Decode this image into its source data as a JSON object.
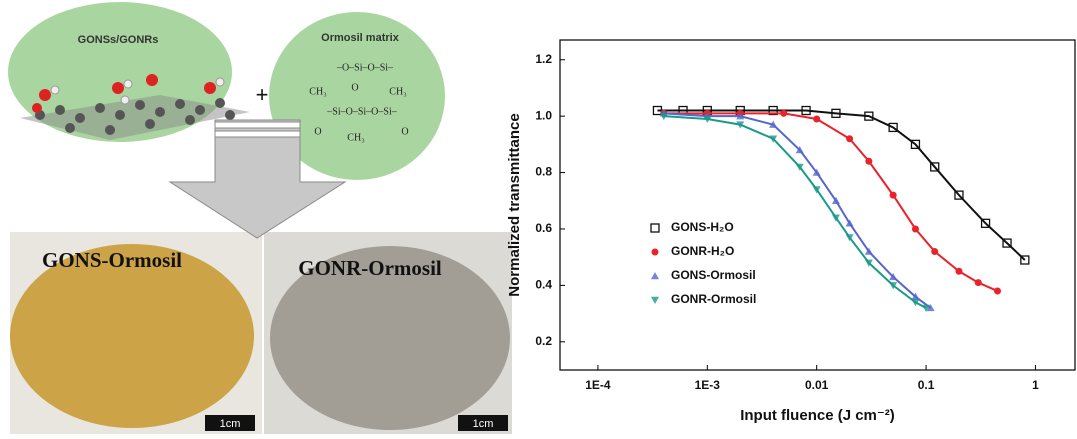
{
  "diagram": {
    "left_oval": "GONSs/GONRs",
    "right_oval": "Ormosil matrix",
    "plus": "+",
    "formula": [
      "–O–Si–O–Si–",
      "CH₃",
      "O",
      "CH₃",
      "–Si–O–Si–O–Si–",
      "O",
      "CH₃",
      "O"
    ],
    "photo_left": "GONS-Ormosil",
    "photo_right": "GONR-Ormosil",
    "scale": "1cm"
  },
  "chart_data": {
    "type": "scatter",
    "xlabel": "Input fluence (J cm⁻²)",
    "ylabel": "Normalized transmittance",
    "xscale": "log",
    "xlim": [
      4.5e-05,
      2.3
    ],
    "ylim": [
      0.1,
      1.27
    ],
    "xticks": [
      {
        "value": 0.0001,
        "label": "1E-4"
      },
      {
        "value": 0.001,
        "label": "1E-3"
      },
      0.01,
      0.1,
      1
    ],
    "yticks": [
      0.2,
      0.4,
      0.6,
      0.8,
      {
        "value": 1,
        "label": "1.0"
      },
      1.2
    ],
    "legend": "left",
    "series": [
      {
        "name": "GONS-H₂O",
        "color": "#111111",
        "marker": "square",
        "x": [
          0.00035,
          0.0006,
          0.001,
          0.002,
          0.004,
          0.008,
          0.015,
          0.03,
          0.05,
          0.08,
          0.12,
          0.2,
          0.35,
          0.55,
          0.8
        ],
        "values": [
          1.02,
          1.02,
          1.02,
          1.02,
          1.02,
          1.02,
          1.01,
          1.0,
          0.96,
          0.9,
          0.82,
          0.72,
          0.62,
          0.55,
          0.49
        ]
      },
      {
        "name": "GONR-H₂O",
        "color": "#e8232a",
        "marker": "circle",
        "x": [
          0.0004,
          0.001,
          0.002,
          0.005,
          0.01,
          0.02,
          0.03,
          0.05,
          0.08,
          0.12,
          0.2,
          0.3,
          0.45
        ],
        "values": [
          1.01,
          1.01,
          1.01,
          1.01,
          0.99,
          0.92,
          0.84,
          0.72,
          0.6,
          0.52,
          0.45,
          0.41,
          0.38
        ]
      },
      {
        "name": "GONS-Ormosil",
        "color": "#5566cc",
        "marker": "triangle-up",
        "x": [
          0.0004,
          0.001,
          0.002,
          0.004,
          0.007,
          0.01,
          0.015,
          0.02,
          0.03,
          0.05,
          0.08,
          0.11
        ],
        "values": [
          1.01,
          1.0,
          1.0,
          0.97,
          0.88,
          0.8,
          0.7,
          0.62,
          0.52,
          0.43,
          0.36,
          0.32
        ]
      },
      {
        "name": "GONR-Ormosil",
        "color": "#1a9a8a",
        "marker": "triangle-down",
        "x": [
          0.0004,
          0.001,
          0.002,
          0.004,
          0.007,
          0.01,
          0.015,
          0.02,
          0.03,
          0.05,
          0.08,
          0.1
        ],
        "values": [
          1.0,
          0.99,
          0.97,
          0.92,
          0.82,
          0.74,
          0.64,
          0.57,
          0.48,
          0.4,
          0.34,
          0.32
        ]
      }
    ]
  }
}
